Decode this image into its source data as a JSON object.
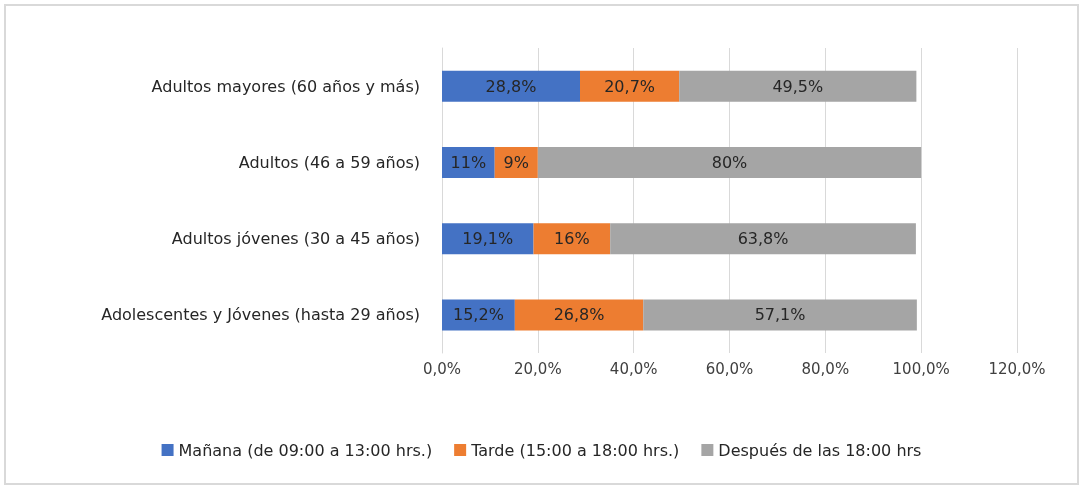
{
  "chart_data": {
    "type": "bar",
    "orientation": "horizontal",
    "stacked": true,
    "categories": [
      "Adultos mayores (60 años y más)",
      "Adultos (46 a 59 años)",
      "Adultos jóvenes (30 a 45 años)",
      "Adolescentes y Jóvenes (hasta 29 años)"
    ],
    "series": [
      {
        "name": "Mañana (de 09:00 a 13:00 hrs.)",
        "color": "#4472c4",
        "values": [
          28.8,
          11,
          19.1,
          15.2
        ],
        "value_labels": [
          "28,8%",
          "11%",
          "19,1%",
          "15,2%"
        ]
      },
      {
        "name": "Tarde (15:00 a 18:00 hrs.)",
        "color": "#ed7d31",
        "values": [
          20.7,
          9,
          16,
          26.8
        ],
        "value_labels": [
          "20,7%",
          "9%",
          "16%",
          "26,8%"
        ]
      },
      {
        "name": "Después de las 18:00 hrs",
        "color": "#a5a5a5",
        "values": [
          49.5,
          80,
          63.8,
          57.1
        ],
        "value_labels": [
          "49,5%",
          "80%",
          "63,8%",
          "57,1%"
        ]
      }
    ],
    "xlim": [
      0,
      120
    ],
    "xticks": [
      {
        "value": 0,
        "label": "0,0%"
      },
      {
        "value": 20,
        "label": "20,0%"
      },
      {
        "value": 40,
        "label": "40,0%"
      },
      {
        "value": 60,
        "label": "60,0%"
      },
      {
        "value": 80,
        "label": "80,0%"
      },
      {
        "value": 100,
        "label": "100,0%"
      },
      {
        "value": 120,
        "label": "120,0%"
      }
    ],
    "grid": "x",
    "legend": "bottom"
  }
}
